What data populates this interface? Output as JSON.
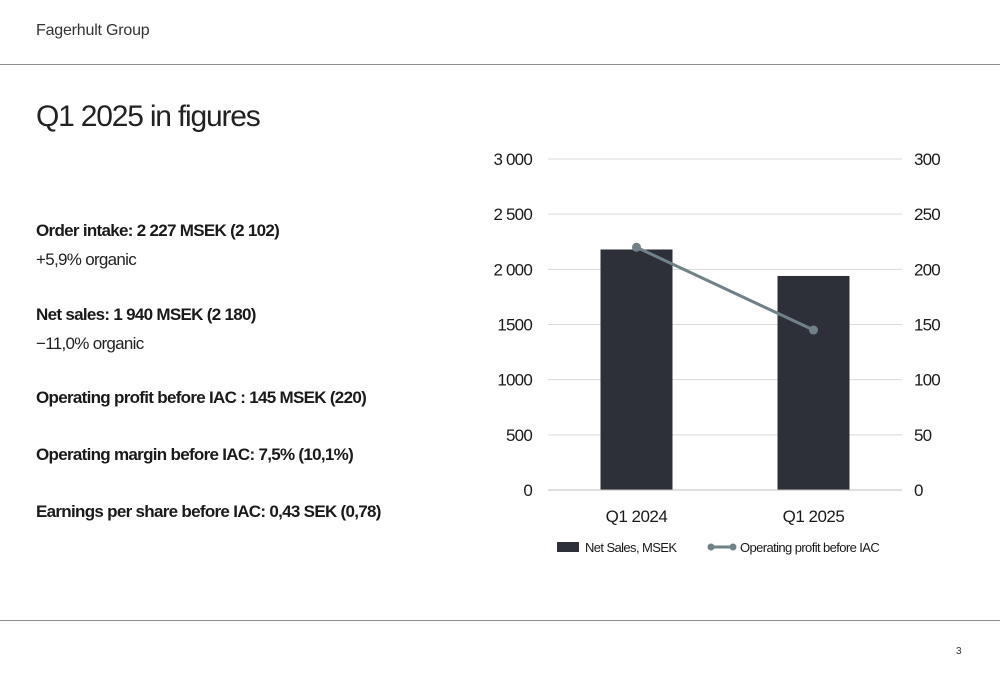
{
  "header": {
    "brand": "Fagerhult Group"
  },
  "slide": {
    "title": "Q1 2025 in figures",
    "page_number": "3"
  },
  "figures": [
    {
      "main": "Order intake: 2 227 MSEK   (2 102)",
      "sub": "+5,9% organic"
    },
    {
      "main": "Net sales:  1 940 MSEK   (2 180)",
      "sub": "−11,0% organic"
    },
    {
      "main": "Operating profit before IAC : 145 MSEK   (220)",
      "sub": ""
    },
    {
      "main": "Operating margin before IAC: 7,5%   (10,1%)",
      "sub": ""
    },
    {
      "main": "Earnings per share before IAC: 0,43 SEK   (0,78)",
      "sub": ""
    }
  ],
  "chart_data": {
    "type": "bar",
    "categories": [
      "Q1 2024",
      "Q1 2025"
    ],
    "series": [
      {
        "name": "Net Sales, MSEK",
        "type": "bar",
        "axis": "left",
        "values": [
          2180,
          1940
        ],
        "color": "#2d3038"
      },
      {
        "name": "Operating profit before IAC",
        "type": "line",
        "axis": "right",
        "values": [
          220,
          145
        ],
        "color": "#6e8288"
      }
    ],
    "y_left": {
      "min": 0,
      "max": 3000,
      "ticks": [
        0,
        500,
        1000,
        1500,
        2000,
        2500,
        3000
      ],
      "tick_labels": [
        "0",
        "500",
        "1000",
        "1500",
        "2 000",
        "2 500",
        "3 000"
      ]
    },
    "y_right": {
      "min": 0,
      "max": 300,
      "ticks": [
        0,
        50,
        100,
        150,
        200,
        250,
        300
      ],
      "tick_labels": [
        "0",
        "50",
        "100",
        "150",
        "200",
        "250",
        "300"
      ]
    },
    "grid": true,
    "legend_position": "bottom",
    "title": "",
    "xlabel": "",
    "ylabel": ""
  }
}
